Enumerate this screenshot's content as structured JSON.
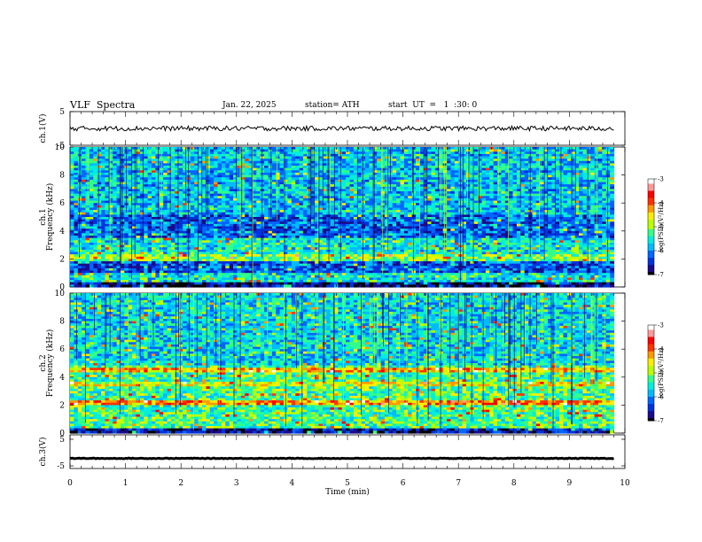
{
  "header": {
    "title": "VLF  Spectra",
    "date": "Jan. 22, 2025",
    "station": "station= ATH",
    "start_ut": "start  UT  =   1  :30: 0"
  },
  "chart_data": [
    {
      "type": "line",
      "ylabel": "ch.1(V)",
      "ylim": [
        -5,
        5
      ],
      "yticks": [
        "5",
        "-5"
      ],
      "xlim": [
        0,
        10
      ],
      "baseline": 0
    },
    {
      "type": "heatmap",
      "ylabel_prefix": "ch.1",
      "ylabel": "Frequency  (kHz)",
      "ylim": [
        0,
        10
      ],
      "yticks": [
        "10",
        "8",
        "6",
        "4",
        "2",
        "0"
      ],
      "xlim": [
        0,
        9.8
      ],
      "colorbar": {
        "label": "log(PSD)(V²/Hz)",
        "range": [
          -7,
          -3
        ],
        "ticks": [
          "-3",
          "-4",
          "-5",
          "-6",
          "-7"
        ]
      }
    },
    {
      "type": "heatmap",
      "ylabel_prefix": "ch.2",
      "ylabel": "Frequency  (kHz)",
      "ylim": [
        0,
        10
      ],
      "yticks": [
        "10",
        "8",
        "6",
        "4",
        "2",
        "0"
      ],
      "xlim": [
        0,
        9.8
      ],
      "colorbar": {
        "label": "log(PSD)(V²/Hz)",
        "range": [
          -7,
          -3
        ],
        "ticks": [
          "-3",
          "-4",
          "-5",
          "-6",
          "-7"
        ]
      }
    },
    {
      "type": "line",
      "ylabel": "ch.3(V)",
      "ylim": [
        -5,
        5
      ],
      "yticks": [
        "5",
        "-5"
      ],
      "xlim": [
        0,
        10
      ],
      "baseline": -2,
      "xlabel": "Time  (min)",
      "xticks": [
        "0",
        "1",
        "2",
        "3",
        "4",
        "5",
        "6",
        "7",
        "8",
        "9",
        "10"
      ]
    }
  ],
  "colors": {
    "cmap": [
      "#000000",
      "#1a0a8c",
      "#0033dd",
      "#0066ff",
      "#00bbff",
      "#00eedd",
      "#33ff88",
      "#bbff00",
      "#ffee00",
      "#ff9900",
      "#ff3300",
      "#ff0000",
      "#ff9999",
      "#ffffff"
    ]
  }
}
